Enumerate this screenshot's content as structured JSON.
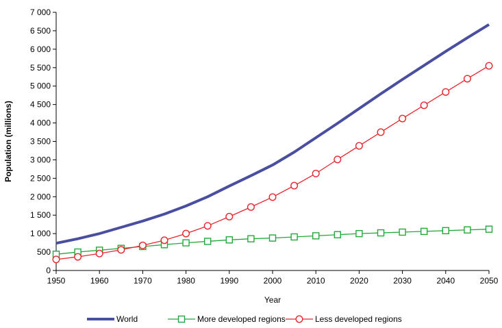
{
  "chart_data": {
    "type": "line",
    "title": "",
    "xlabel": "Year",
    "ylabel": "Population (millions)",
    "xlim": [
      1950,
      2050
    ],
    "ylim": [
      0,
      7000
    ],
    "x_ticks": [
      "1950",
      "1960",
      "1970",
      "1980",
      "1990",
      "2000",
      "2010",
      "2020",
      "2030",
      "2040",
      "2050"
    ],
    "y_ticks": [
      "0",
      "500",
      "1 000",
      "1 500",
      "2 000",
      "2 500",
      "3 000",
      "3 500",
      "4 000",
      "4 500",
      "5 000",
      "5 500",
      "6 000",
      "6 500",
      "7 000"
    ],
    "grid": false,
    "legend_position": "bottom",
    "x": [
      1950,
      1955,
      1960,
      1965,
      1970,
      1975,
      1980,
      1985,
      1990,
      1995,
      2000,
      2005,
      2010,
      2015,
      2020,
      2025,
      2030,
      2035,
      2040,
      2045,
      2050
    ],
    "series": [
      {
        "name": "World",
        "color": "#4a4ea0",
        "marker": "none",
        "values": [
          740,
          860,
          1000,
          1170,
          1340,
          1530,
          1750,
          2000,
          2290,
          2570,
          2860,
          3210,
          3600,
          3990,
          4390,
          4790,
          5180,
          5560,
          5940,
          6310,
          6670
        ]
      },
      {
        "name": "More developed regions",
        "color": "#22a83a",
        "marker": "square",
        "values": [
          440,
          500,
          550,
          600,
          650,
          700,
          750,
          790,
          830,
          860,
          880,
          910,
          940,
          970,
          1000,
          1020,
          1040,
          1060,
          1080,
          1100,
          1120
        ]
      },
      {
        "name": "Less developed regions",
        "color": "#e8242b",
        "marker": "circle",
        "values": [
          300,
          370,
          460,
          560,
          680,
          820,
          1000,
          1210,
          1460,
          1720,
          1990,
          2300,
          2630,
          3010,
          3380,
          3750,
          4120,
          4480,
          4840,
          5200,
          5550
        ]
      }
    ]
  }
}
